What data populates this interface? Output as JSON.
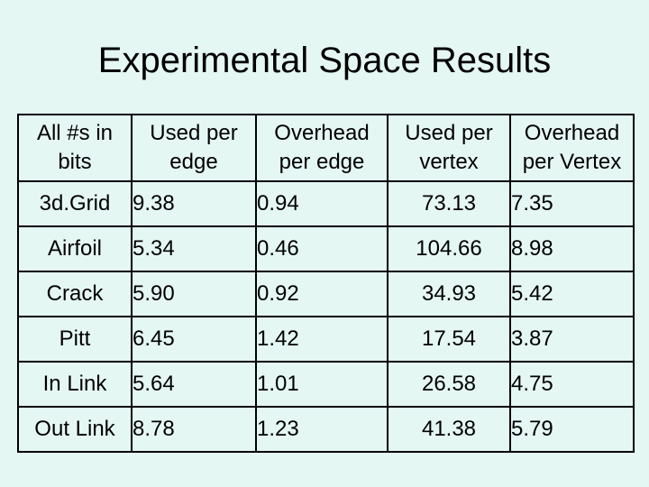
{
  "title": "Experimental Space Results",
  "table": {
    "headers": [
      [
        "All #s in",
        "bits"
      ],
      [
        "Used per",
        "edge"
      ],
      [
        "Overhead",
        "per edge"
      ],
      [
        "Used per",
        "vertex"
      ],
      [
        "Overhead",
        "per Vertex"
      ]
    ],
    "rows": [
      [
        "3d.Grid",
        "9.38",
        "0.94",
        "73.13",
        "7.35"
      ],
      [
        "Airfoil",
        "5.34",
        "0.46",
        "104.66",
        "8.98"
      ],
      [
        "Crack",
        "5.90",
        "0.92",
        "34.93",
        "5.42"
      ],
      [
        "Pitt",
        "6.45",
        "1.42",
        "17.54",
        "3.87"
      ],
      [
        "In Link",
        "5.64",
        "1.01",
        "26.58",
        "4.75"
      ],
      [
        "Out Link",
        "8.78",
        "1.23",
        "41.38",
        "5.79"
      ]
    ]
  }
}
